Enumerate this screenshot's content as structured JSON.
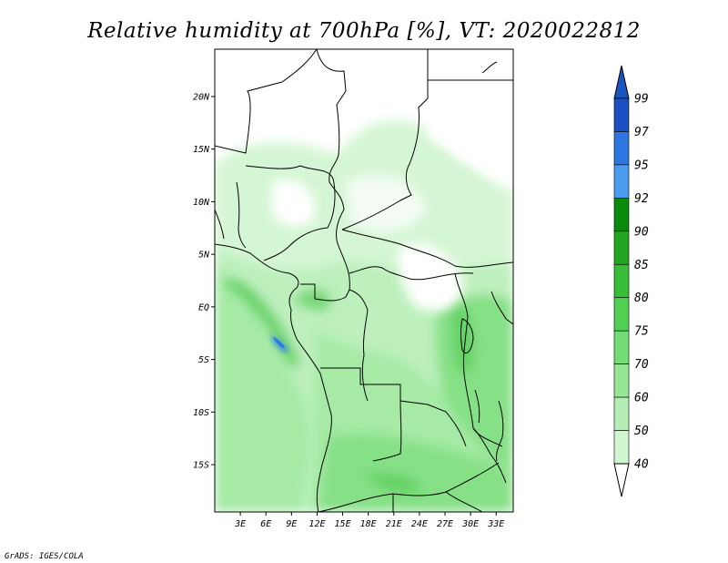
{
  "title": "Relative humidity at 700hPa [%], VT: 2020022812",
  "footer": "GrADS: IGES/COLA",
  "map": {
    "lat_labels": [
      "20N",
      "15N",
      "10N",
      "5N",
      "EQ",
      "5S",
      "10S",
      "15S"
    ],
    "lat_values": [
      20,
      15,
      10,
      5,
      0,
      -5,
      -10,
      -15
    ],
    "lon_labels": [
      "3E",
      "6E",
      "9E",
      "12E",
      "15E",
      "18E",
      "21E",
      "24E",
      "27E",
      "30E",
      "33E"
    ],
    "lon_values": [
      3,
      6,
      9,
      12,
      15,
      18,
      21,
      24,
      27,
      30,
      33
    ],
    "lon_range": [
      0,
      35
    ],
    "lat_range": [
      -19.5,
      24.5
    ]
  },
  "colorbar": {
    "labels": [
      "99",
      "97",
      "95",
      "92",
      "90",
      "85",
      "80",
      "75",
      "70",
      "60",
      "50",
      "40"
    ],
    "colors": [
      "#1a4fc0",
      "#2d76e0",
      "#4a9cee",
      "#0a8a0a",
      "#22a622",
      "#38be38",
      "#52d052",
      "#74dc74",
      "#96e696",
      "#b4eeb4",
      "#d0f6d0",
      "#eafcea"
    ],
    "under_color": "#ffffff",
    "over_color": "#1a55bb"
  }
}
